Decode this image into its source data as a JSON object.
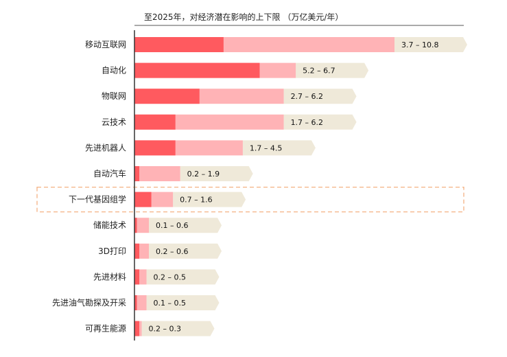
{
  "chart_data": {
    "type": "bar",
    "orientation": "horizontal",
    "title": "至2025年，对经济潜在影响的上下限 （万亿美元/年）",
    "xlabel": "",
    "ylabel": "",
    "xlim": [
      0,
      11.5
    ],
    "grid": false,
    "categories": [
      "移动互联网",
      "自动化",
      "物联网",
      "云技术",
      "先进机器人",
      "自动汽车",
      "下一代基因组学",
      "储能技术",
      "3D打印",
      "先进材料",
      "先进油气勘探及开采",
      "可再生能源"
    ],
    "range_labels": [
      "3.7 – 10.8",
      "5.2 – 6.7",
      "2.7 – 6.2",
      "1.7 – 6.2",
      "1.7 – 4.5",
      "0.2 – 1.9",
      "0.7 – 1.6",
      "0.1 – 0.6",
      "0.2 – 0.6",
      "0.2 – 0.5",
      "0.1 – 0.5",
      "0.2 – 0.3"
    ],
    "series": [
      {
        "name": "",
        "values": [
          3.7,
          5.2,
          2.7,
          1.7,
          1.7,
          0.2,
          0.7,
          0.1,
          0.2,
          0.2,
          0.1,
          0.2
        ]
      },
      {
        "name": "",
        "values": [
          10.8,
          6.7,
          6.2,
          6.2,
          4.5,
          1.9,
          1.6,
          0.6,
          0.6,
          0.5,
          0.5,
          0.3
        ]
      }
    ],
    "highlighted_category": "下一代基因组学",
    "colors": {
      "lower": "#ff5a5f",
      "upper": "#ffb3b6",
      "label_bg": "#efe9d9",
      "highlight_border": "#f4b183",
      "axis": "#333333"
    }
  }
}
